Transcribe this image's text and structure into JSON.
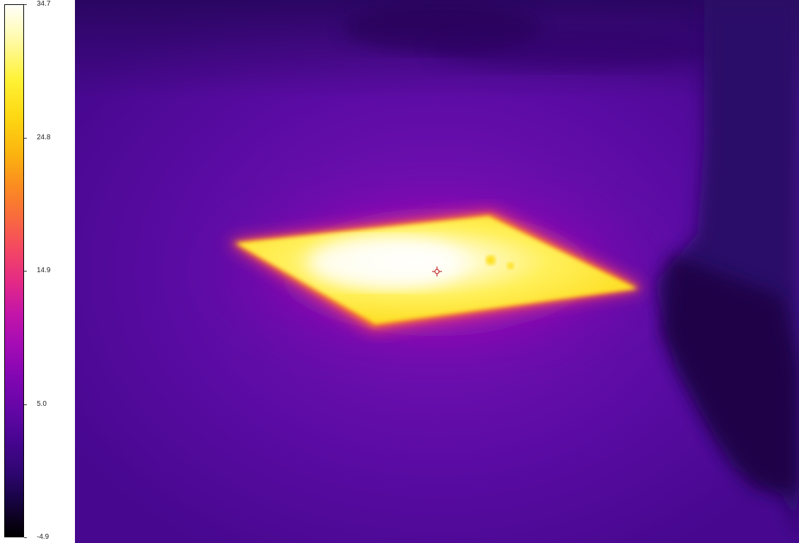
{
  "scale": {
    "max": "34.7",
    "tick_high": "24.8",
    "tick_mid": "14.9",
    "tick_low": "5.0",
    "min": "-4.9"
  },
  "palette": {
    "hot": "#fffff0",
    "warm": "#ffe84a",
    "orange": "#fb8c20",
    "magenta": "#c415a8",
    "background": "#4f0a9c",
    "cold": "#14042e"
  },
  "measurement": {
    "spot_icon": "crosshair-icon",
    "spot_color": "#c0282a"
  }
}
